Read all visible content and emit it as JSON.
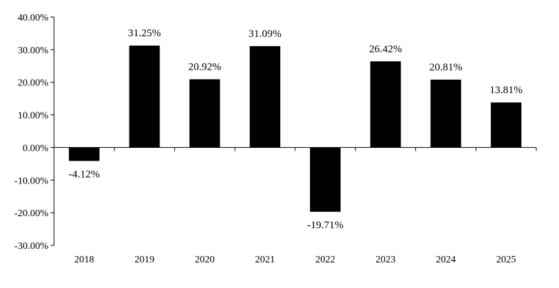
{
  "chart_data": {
    "type": "bar",
    "title": "",
    "xlabel": "",
    "ylabel": "",
    "categories": [
      "2018",
      "2019",
      "2020",
      "2021",
      "2022",
      "2023",
      "2024",
      "2025"
    ],
    "values": [
      -4.12,
      31.25,
      20.92,
      31.09,
      -19.71,
      26.42,
      20.81,
      13.81
    ],
    "value_labels": [
      "-4.12%",
      "31.25%",
      "20.92%",
      "31.09%",
      "-19.71%",
      "26.42%",
      "20.81%",
      "13.81%"
    ],
    "ylim": [
      -30,
      40
    ],
    "yticks": [
      40,
      30,
      20,
      10,
      0,
      -10,
      -20,
      -30
    ],
    "ytick_labels": [
      "40.00%",
      "30.00%",
      "20.00%",
      "10.00%",
      "0.00%",
      "-10.00%",
      "-20.00%",
      "-30.00%"
    ],
    "grid": false,
    "legend": "none",
    "bar_color": "#000000"
  }
}
